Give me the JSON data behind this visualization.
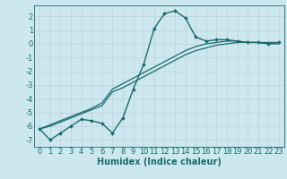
{
  "title": "",
  "xlabel": "Humidex (Indice chaleur)",
  "background_color": "#cce8ee",
  "grid_color": "#b8d4da",
  "line_color": "#1a6b6b",
  "xlim": [
    -0.5,
    23.5
  ],
  "ylim": [
    -7.5,
    2.8
  ],
  "xticks": [
    0,
    1,
    2,
    3,
    4,
    5,
    6,
    7,
    8,
    9,
    10,
    11,
    12,
    13,
    14,
    15,
    16,
    17,
    18,
    19,
    20,
    21,
    22,
    23
  ],
  "yticks": [
    -7,
    -6,
    -5,
    -4,
    -3,
    -2,
    -1,
    0,
    1,
    2
  ],
  "curve1_x": [
    0,
    1,
    2,
    3,
    4,
    5,
    6,
    7,
    8,
    9,
    10,
    11,
    12,
    13,
    14,
    15,
    16,
    17,
    18,
    19,
    20,
    21,
    22,
    23
  ],
  "curve1_y": [
    -6.2,
    -7.0,
    -6.5,
    -6.0,
    -5.5,
    -5.6,
    -5.8,
    -6.5,
    -5.4,
    -3.3,
    -1.5,
    1.1,
    2.2,
    2.4,
    1.9,
    0.5,
    0.2,
    0.3,
    0.3,
    0.2,
    0.1,
    0.1,
    0.0,
    0.1
  ],
  "curve2_x": [
    0,
    1,
    2,
    3,
    4,
    5,
    6,
    7,
    8,
    9,
    10,
    11,
    12,
    13,
    14,
    15,
    16,
    17,
    18,
    19,
    20,
    21,
    22,
    23
  ],
  "curve2_y": [
    -6.2,
    -6.0,
    -5.7,
    -5.4,
    -5.1,
    -4.8,
    -4.5,
    -3.5,
    -3.2,
    -2.8,
    -2.4,
    -2.0,
    -1.6,
    -1.2,
    -0.8,
    -0.5,
    -0.3,
    -0.1,
    0.0,
    0.1,
    0.1,
    0.1,
    0.0,
    0.0
  ],
  "curve3_x": [
    0,
    1,
    2,
    3,
    4,
    5,
    6,
    7,
    8,
    9,
    10,
    11,
    12,
    13,
    14,
    15,
    16,
    17,
    18,
    19,
    20,
    21,
    22,
    23
  ],
  "curve3_y": [
    -6.2,
    -5.9,
    -5.6,
    -5.3,
    -5.0,
    -4.7,
    -4.3,
    -3.3,
    -2.9,
    -2.5,
    -2.1,
    -1.7,
    -1.3,
    -0.9,
    -0.5,
    -0.2,
    0.0,
    0.1,
    0.2,
    0.2,
    0.1,
    0.1,
    0.1,
    0.1
  ],
  "marker_color": "#1a6b6b",
  "xlabel_fontsize": 7,
  "tick_fontsize": 6
}
